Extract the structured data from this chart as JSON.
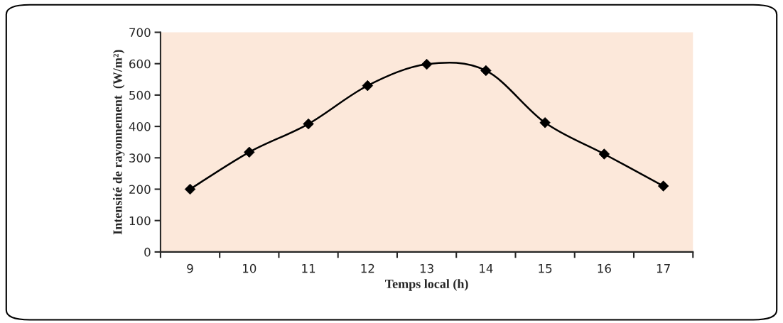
{
  "chart_data": {
    "type": "line",
    "xlabel": "Temps local (h)",
    "ylabel": "Intensité de rayonnement  (W/m²)",
    "categories": [
      "9",
      "10",
      "11",
      "12",
      "13",
      "14",
      "15",
      "16",
      "17"
    ],
    "series": [
      {
        "color": "#000000",
        "values": [
          200,
          318,
          408,
          530,
          598,
          578,
          412,
          312,
          210
        ]
      }
    ],
    "ylim": [
      0,
      700
    ],
    "yticks": [
      0,
      100,
      200,
      300,
      400,
      500,
      600,
      700
    ],
    "marker": "diamond",
    "line_style": "solid",
    "grid": false,
    "legend": false
  }
}
